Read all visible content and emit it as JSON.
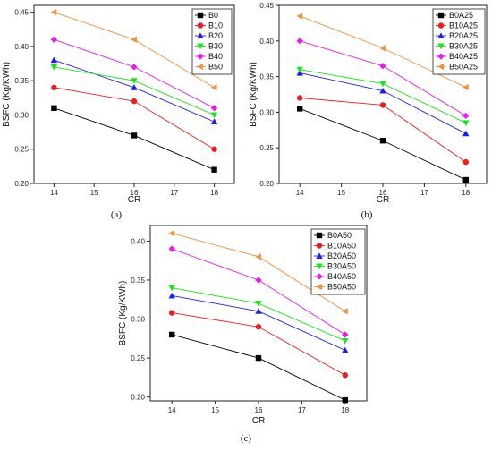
{
  "chart_data": [
    {
      "type": "line",
      "caption": "(a)",
      "xlabel": "CR",
      "ylabel": "BSFC (Kg/KWh)",
      "x": [
        14,
        16,
        18
      ],
      "xlim": [
        13.5,
        18.5
      ],
      "xticks": [
        14,
        15,
        16,
        17,
        18
      ],
      "ylim": [
        0.2,
        0.46
      ],
      "yticks": [
        0.2,
        0.25,
        0.3,
        0.35,
        0.4,
        0.45
      ],
      "legend_position": "top-right",
      "series": [
        {
          "name": "B0",
          "values": [
            0.31,
            0.27,
            0.22
          ],
          "color": "#000000",
          "marker": "square"
        },
        {
          "name": "B10",
          "values": [
            0.34,
            0.32,
            0.25
          ],
          "color": "#ee1c1c",
          "marker": "circle"
        },
        {
          "name": "B20",
          "values": [
            0.38,
            0.34,
            0.29
          ],
          "color": "#1c1cee",
          "marker": "triangle-up"
        },
        {
          "name": "B30",
          "values": [
            0.37,
            0.35,
            0.3
          ],
          "color": "#19e619",
          "marker": "triangle-down"
        },
        {
          "name": "B40",
          "values": [
            0.41,
            0.37,
            0.31
          ],
          "color": "#ee19ee",
          "marker": "diamond"
        },
        {
          "name": "B50",
          "values": [
            0.45,
            0.41,
            0.34
          ],
          "color": "#f0913c",
          "marker": "triangle-left"
        }
      ]
    },
    {
      "type": "line",
      "caption": "(b)",
      "xlabel": "CR",
      "ylabel": "BSFC (Kg/KWh)",
      "x": [
        14,
        16,
        18
      ],
      "xlim": [
        13.5,
        18.5
      ],
      "xticks": [
        14,
        15,
        16,
        17,
        18
      ],
      "ylim": [
        0.2,
        0.45
      ],
      "yticks": [
        0.2,
        0.25,
        0.3,
        0.35,
        0.4,
        0.45
      ],
      "legend_position": "top-right",
      "series": [
        {
          "name": "B0A25",
          "values": [
            0.305,
            0.26,
            0.205
          ],
          "color": "#000000",
          "marker": "square"
        },
        {
          "name": "B10A25",
          "values": [
            0.32,
            0.31,
            0.23
          ],
          "color": "#ee1c1c",
          "marker": "circle"
        },
        {
          "name": "B20A25",
          "values": [
            0.355,
            0.33,
            0.27
          ],
          "color": "#1c1cee",
          "marker": "triangle-up"
        },
        {
          "name": "B30A25",
          "values": [
            0.36,
            0.34,
            0.285
          ],
          "color": "#19e619",
          "marker": "triangle-down"
        },
        {
          "name": "B40A25",
          "values": [
            0.4,
            0.365,
            0.295
          ],
          "color": "#ee19ee",
          "marker": "diamond"
        },
        {
          "name": "B50A25",
          "values": [
            0.435,
            0.39,
            0.335
          ],
          "color": "#f0913c",
          "marker": "triangle-left"
        }
      ]
    },
    {
      "type": "line",
      "caption": "(c)",
      "xlabel": "CR",
      "ylabel": "BSFC (Kg/KWh)",
      "x": [
        14,
        16,
        18
      ],
      "xlim": [
        13.5,
        18.5
      ],
      "xticks": [
        14,
        15,
        16,
        17,
        18
      ],
      "ylim": [
        0.195,
        0.42
      ],
      "yticks": [
        0.2,
        0.25,
        0.3,
        0.35,
        0.4
      ],
      "legend_position": "top-right",
      "series": [
        {
          "name": "B0A50",
          "values": [
            0.28,
            0.25,
            0.196
          ],
          "color": "#000000",
          "marker": "square"
        },
        {
          "name": "B10A50",
          "values": [
            0.308,
            0.29,
            0.228
          ],
          "color": "#ee1c1c",
          "marker": "circle"
        },
        {
          "name": "B20A50",
          "values": [
            0.33,
            0.31,
            0.26
          ],
          "color": "#1c1cee",
          "marker": "triangle-up"
        },
        {
          "name": "B30A50",
          "values": [
            0.34,
            0.32,
            0.272
          ],
          "color": "#19e619",
          "marker": "triangle-down"
        },
        {
          "name": "B40A50",
          "values": [
            0.39,
            0.35,
            0.28
          ],
          "color": "#ee19ee",
          "marker": "diamond"
        },
        {
          "name": "B50A50",
          "values": [
            0.41,
            0.38,
            0.31
          ],
          "color": "#f0913c",
          "marker": "triangle-left"
        }
      ]
    }
  ]
}
